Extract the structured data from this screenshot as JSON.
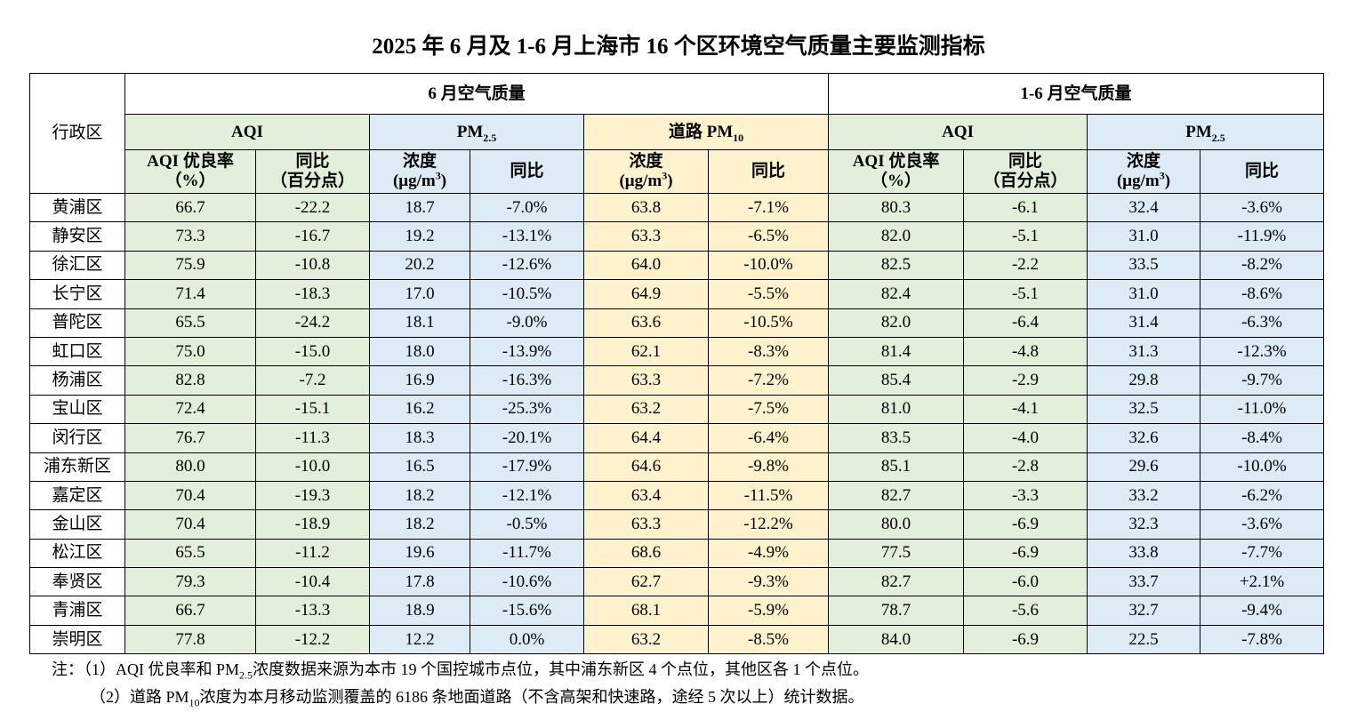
{
  "title": "2025 年 6 月及 1-6 月上海市 16 个区环境空气质量主要监测指标",
  "table": {
    "district_header": "行政区",
    "groups": [
      "6 月空气质量",
      "1-6 月空气质量"
    ],
    "subgroups": [
      [
        "AQI"
      ],
      [
        "PM",
        {
          "sub": "2.5"
        }
      ],
      [
        "道路 PM",
        {
          "sub": "10"
        }
      ],
      [
        "AQI"
      ],
      [
        "PM",
        {
          "sub": "2.5"
        }
      ]
    ],
    "columns": [
      [
        [
          "AQI 优良率"
        ],
        [
          "（%）"
        ]
      ],
      [
        [
          "同比"
        ],
        [
          "（百分点）"
        ]
      ],
      [
        [
          "浓度"
        ],
        [
          "(μg/m",
          {
            "sup": "3"
          },
          ")"
        ]
      ],
      [
        [
          "同比"
        ]
      ],
      [
        [
          "浓度"
        ],
        [
          "(μg/m",
          {
            "sup": "3"
          },
          ")"
        ]
      ],
      [
        [
          "同比"
        ]
      ],
      [
        [
          "AQI 优良率"
        ],
        [
          "（%）"
        ]
      ],
      [
        [
          "同比"
        ],
        [
          "（百分点）"
        ]
      ],
      [
        [
          "浓度"
        ],
        [
          "(μg/m",
          {
            "sup": "3"
          },
          ")"
        ]
      ],
      [
        [
          "同比"
        ]
      ]
    ],
    "rows": [
      [
        "黄浦区",
        "66.7",
        "-22.2",
        "18.7",
        "-7.0%",
        "63.8",
        "-7.1%",
        "80.3",
        "-6.1",
        "32.4",
        "-3.6%"
      ],
      [
        "静安区",
        "73.3",
        "-16.7",
        "19.2",
        "-13.1%",
        "63.3",
        "-6.5%",
        "82.0",
        "-5.1",
        "31.0",
        "-11.9%"
      ],
      [
        "徐汇区",
        "75.9",
        "-10.8",
        "20.2",
        "-12.6%",
        "64.0",
        "-10.0%",
        "82.5",
        "-2.2",
        "33.5",
        "-8.2%"
      ],
      [
        "长宁区",
        "71.4",
        "-18.3",
        "17.0",
        "-10.5%",
        "64.9",
        "-5.5%",
        "82.4",
        "-5.1",
        "31.0",
        "-8.6%"
      ],
      [
        "普陀区",
        "65.5",
        "-24.2",
        "18.1",
        "-9.0%",
        "63.6",
        "-10.5%",
        "82.0",
        "-6.4",
        "31.4",
        "-6.3%"
      ],
      [
        "虹口区",
        "75.0",
        "-15.0",
        "18.0",
        "-13.9%",
        "62.1",
        "-8.3%",
        "81.4",
        "-4.8",
        "31.3",
        "-12.3%"
      ],
      [
        "杨浦区",
        "82.8",
        "-7.2",
        "16.9",
        "-16.3%",
        "63.3",
        "-7.2%",
        "85.4",
        "-2.9",
        "29.8",
        "-9.7%"
      ],
      [
        "宝山区",
        "72.4",
        "-15.1",
        "16.2",
        "-25.3%",
        "63.2",
        "-7.5%",
        "81.0",
        "-4.1",
        "32.5",
        "-11.0%"
      ],
      [
        "闵行区",
        "76.7",
        "-11.3",
        "18.3",
        "-20.1%",
        "64.4",
        "-6.4%",
        "83.5",
        "-4.0",
        "32.6",
        "-8.4%"
      ],
      [
        "浦东新区",
        "80.0",
        "-10.0",
        "16.5",
        "-17.9%",
        "64.6",
        "-9.8%",
        "85.1",
        "-2.8",
        "29.6",
        "-10.0%"
      ],
      [
        "嘉定区",
        "70.4",
        "-19.3",
        "18.2",
        "-12.1%",
        "63.4",
        "-11.5%",
        "82.7",
        "-3.3",
        "33.2",
        "-6.2%"
      ],
      [
        "金山区",
        "70.4",
        "-18.9",
        "18.2",
        "-0.5%",
        "63.3",
        "-12.2%",
        "80.0",
        "-6.9",
        "32.3",
        "-3.6%"
      ],
      [
        "松江区",
        "65.5",
        "-11.2",
        "19.6",
        "-11.7%",
        "68.6",
        "-4.9%",
        "77.5",
        "-6.9",
        "33.8",
        "-7.7%"
      ],
      [
        "奉贤区",
        "79.3",
        "-10.4",
        "17.8",
        "-10.6%",
        "62.7",
        "-9.3%",
        "82.7",
        "-6.0",
        "33.7",
        "+2.1%"
      ],
      [
        "青浦区",
        "66.7",
        "-13.3",
        "18.9",
        "-15.6%",
        "68.1",
        "-5.9%",
        "78.7",
        "-5.6",
        "32.7",
        "-9.4%"
      ],
      [
        "崇明区",
        "77.8",
        "-12.2",
        "12.2",
        "0.0%",
        "63.2",
        "-8.5%",
        "84.0",
        "-6.9",
        "22.5",
        "-7.8%"
      ]
    ]
  },
  "notes": [
    [
      "注：（1）AQI 优良率和 PM",
      {
        "sub": "2.5"
      },
      "浓度数据来源为本市 19 个国控城市点位，其中浦东新区 4 个点位，其他区各 1 个点位。"
    ],
    [
      "（2）道路 PM",
      {
        "sub": "10"
      },
      "浓度为本月移动监测覆盖的 6186 条地面道路（不含高架和快速路，途经 5 次以上）统计数据。"
    ]
  ]
}
